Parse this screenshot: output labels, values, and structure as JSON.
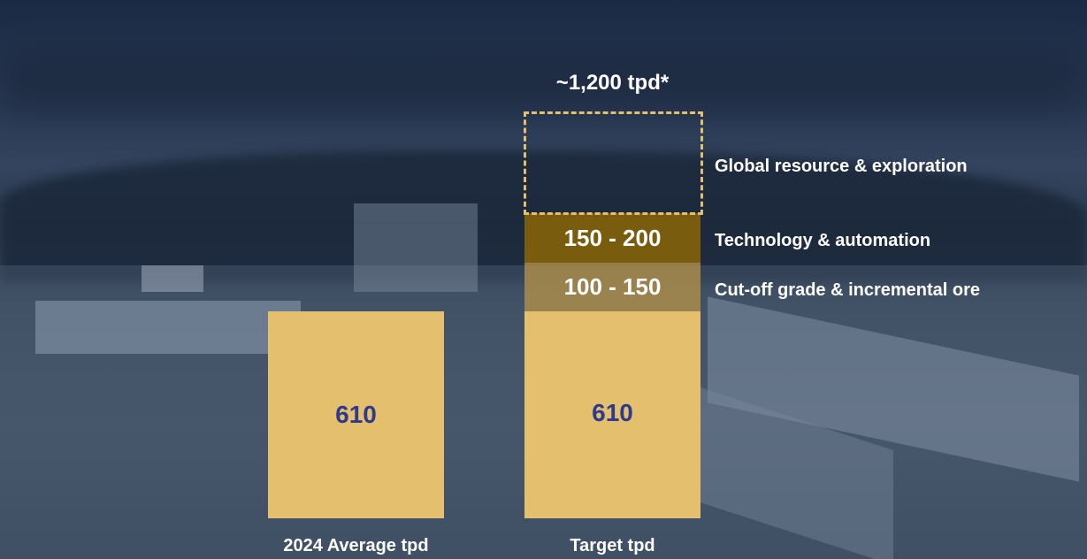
{
  "top_label": "~1,200 tpd*",
  "bars": [
    {
      "label": "2024 Average tpd",
      "segments": [
        {
          "text": "610"
        }
      ]
    },
    {
      "label": "Target tpd",
      "segments": [
        {
          "text": "610"
        },
        {
          "text": "100 - 150"
        },
        {
          "text": "150 - 200"
        }
      ]
    }
  ],
  "drivers": [
    "Global resource & exploration",
    "Technology & automation",
    "Cut-off grade & incremental ore"
  ]
}
